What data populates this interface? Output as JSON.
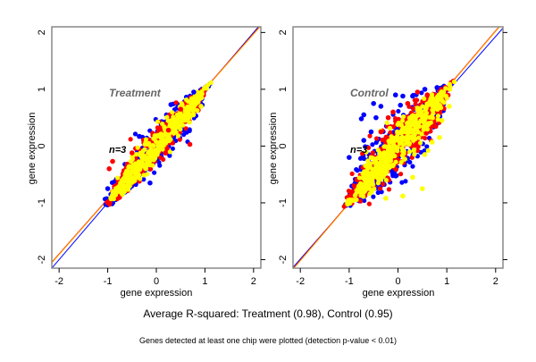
{
  "chart_data": [
    {
      "type": "scatter",
      "panel_title": "Treatment",
      "annotation": "n=3",
      "xlabel": "gene expression",
      "ylabel": "gene expression",
      "xlim": [
        -2.15,
        2.15
      ],
      "ylim": [
        -2.15,
        2.1
      ],
      "xticks": [
        "-2",
        "-1",
        "0",
        "1",
        "2"
      ],
      "yticks": [
        "-2",
        "-1",
        "0",
        "1",
        "2"
      ],
      "lines": [
        {
          "name": "blue-fit",
          "color": "#0000ff",
          "slope": 1.0,
          "intercept": 0.0
        },
        {
          "name": "red-fit",
          "color": "#ff0000",
          "slope": 0.97,
          "intercept": 0.04
        },
        {
          "name": "orange-fit",
          "color": "#ffa500",
          "slope": 0.97,
          "intercept": 0.03
        }
      ],
      "clouds": [
        {
          "color": "#0000ff",
          "x_range": [
            -1.15,
            1.15
          ],
          "spread": 0.16
        },
        {
          "color": "#ff0000",
          "x_range": [
            -1.12,
            1.15
          ],
          "spread": 0.14
        },
        {
          "color": "#ffff00",
          "x_range": [
            -1.1,
            1.15
          ],
          "spread": 0.11
        }
      ],
      "outliers": [
        {
          "color": "#0000ff",
          "x": 0.3,
          "y": 0.73
        },
        {
          "color": "#0000ff",
          "x": 0.77,
          "y": 0.95
        },
        {
          "color": "#0000ff",
          "x": 0.68,
          "y": 0.27
        },
        {
          "color": "#0000ff",
          "x": -0.35,
          "y": 0.17
        },
        {
          "color": "#0000ff",
          "x": -0.13,
          "y": -0.65
        },
        {
          "color": "#0000ff",
          "x": -1.0,
          "y": -0.75
        },
        {
          "color": "#ff0000",
          "x": 0.69,
          "y": 0.03
        },
        {
          "color": "#ff0000",
          "x": -0.97,
          "y": -0.4
        },
        {
          "color": "#ff0000",
          "x": -0.5,
          "y": -0.12
        },
        {
          "color": "#ff0000",
          "x": 0.5,
          "y": 0.65
        },
        {
          "color": "#ff0000",
          "x": -0.9,
          "y": -0.27
        },
        {
          "color": "#ff0000",
          "x": 0.25,
          "y": 0.28
        },
        {
          "color": "#ffff00",
          "x": 0.1,
          "y": 0.05
        },
        {
          "color": "#ffff00",
          "x": 0.92,
          "y": 0.7
        }
      ]
    },
    {
      "type": "scatter",
      "panel_title": "Control",
      "annotation": "n=3",
      "xlabel": "gene expression",
      "ylabel": "gene expression",
      "xlim": [
        -2.15,
        2.15
      ],
      "ylim": [
        -2.15,
        2.1
      ],
      "xticks": [
        "-2",
        "-1",
        "0",
        "1",
        "2"
      ],
      "yticks": [
        "-2",
        "-1",
        "0",
        "1",
        "2"
      ],
      "lines": [
        {
          "name": "blue-fit",
          "color": "#0000ff",
          "slope": 0.98,
          "intercept": -0.03
        },
        {
          "name": "red-fit",
          "color": "#ff0000",
          "slope": 1.01,
          "intercept": 0.01
        },
        {
          "name": "orange-fit",
          "color": "#ffa500",
          "slope": 1.01,
          "intercept": 0.0
        }
      ],
      "clouds": [
        {
          "color": "#0000ff",
          "x_range": [
            -1.1,
            1.15
          ],
          "spread": 0.26
        },
        {
          "color": "#ff0000",
          "x_range": [
            -1.1,
            1.15
          ],
          "spread": 0.22
        },
        {
          "color": "#ffff00",
          "x_range": [
            -1.1,
            1.15
          ],
          "spread": 0.17
        }
      ],
      "outliers": [
        {
          "color": "#0000ff",
          "x": -0.5,
          "y": 0.75
        },
        {
          "color": "#0000ff",
          "x": -0.35,
          "y": 0.7
        },
        {
          "color": "#0000ff",
          "x": -0.7,
          "y": 0.55
        },
        {
          "color": "#0000ff",
          "x": -0.75,
          "y": 0.48
        },
        {
          "color": "#0000ff",
          "x": -0.45,
          "y": 0.5
        },
        {
          "color": "#0000ff",
          "x": -0.05,
          "y": 0.9
        },
        {
          "color": "#0000ff",
          "x": 0.1,
          "y": 0.88
        },
        {
          "color": "#0000ff",
          "x": 0.3,
          "y": 0.88
        },
        {
          "color": "#0000ff",
          "x": 0.55,
          "y": 1.0
        },
        {
          "color": "#0000ff",
          "x": 0.8,
          "y": 1.03
        },
        {
          "color": "#0000ff",
          "x": -1.0,
          "y": -0.2
        },
        {
          "color": "#0000ff",
          "x": -0.55,
          "y": 0.25
        },
        {
          "color": "#0000ff",
          "x": -0.7,
          "y": 0.1
        },
        {
          "color": "#0000ff",
          "x": 0.05,
          "y": 0.72
        },
        {
          "color": "#ff0000",
          "x": 0.4,
          "y": 0.95
        },
        {
          "color": "#ff0000",
          "x": 0.2,
          "y": 0.75
        },
        {
          "color": "#ff0000",
          "x": -0.2,
          "y": 0.5
        },
        {
          "color": "#ff0000",
          "x": -0.1,
          "y": 0.6
        },
        {
          "color": "#ff0000",
          "x": 0.6,
          "y": 0.9
        },
        {
          "color": "#ff0000",
          "x": -0.35,
          "y": 0.25
        },
        {
          "color": "#ffff00",
          "x": 0.5,
          "y": -0.75
        },
        {
          "color": "#ffff00",
          "x": 0.1,
          "y": -0.88
        },
        {
          "color": "#ffff00",
          "x": 0.55,
          "y": -0.15
        },
        {
          "color": "#ffff00",
          "x": 0.85,
          "y": 0.15
        },
        {
          "color": "#ffff00",
          "x": 0.7,
          "y": 0.07
        },
        {
          "color": "#ffff00",
          "x": 1.05,
          "y": 0.7
        },
        {
          "color": "#ffff00",
          "x": 0.9,
          "y": 0.45
        },
        {
          "color": "#ffff00",
          "x": 0.3,
          "y": -0.55
        },
        {
          "color": "#ffff00",
          "x": -0.25,
          "y": -0.92
        }
      ]
    }
  ],
  "caption": {
    "main": "Average R-squared: Treatment (0.98), Control (0.95)",
    "note": "Genes detected at least one chip were plotted (detection p-value < 0.01)"
  }
}
